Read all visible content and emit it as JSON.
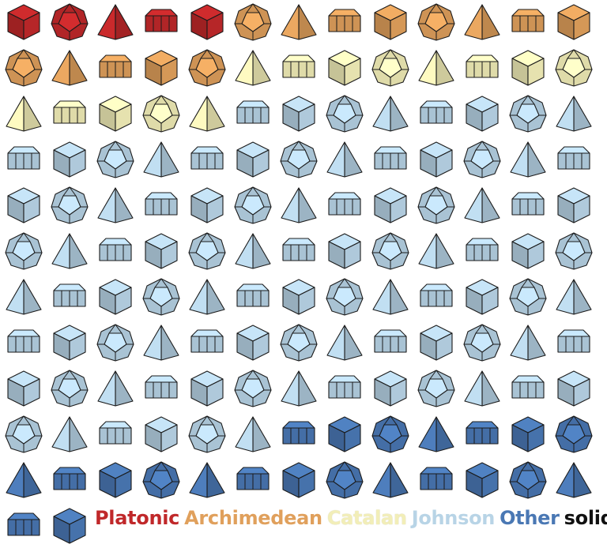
{
  "colors": {
    "platonic": "#c0282a",
    "archimedean": "#e0a05c",
    "catalan": "#f2eeb8",
    "johnson": "#b8d4e6",
    "other": "#4a78b4",
    "solids": "#111111"
  },
  "legend": {
    "platonic": "Platonic",
    "archimedean": "Archimedean",
    "catalan": "Catalan",
    "johnson": "Johnson",
    "other": "Other",
    "solids": "solids"
  },
  "rows": [
    [
      "platonic",
      "platonic",
      "platonic",
      "platonic",
      "platonic",
      "archimedean",
      "archimedean",
      "archimedean",
      "archimedean",
      "archimedean",
      "archimedean",
      "archimedean",
      "archimedean"
    ],
    [
      "archimedean",
      "archimedean",
      "archimedean",
      "archimedean",
      "archimedean",
      "catalan",
      "catalan",
      "catalan",
      "catalan",
      "catalan",
      "catalan",
      "catalan",
      "catalan"
    ],
    [
      "catalan",
      "catalan",
      "catalan",
      "catalan",
      "catalan",
      "johnson",
      "johnson",
      "johnson",
      "johnson",
      "johnson",
      "johnson",
      "johnson",
      "johnson"
    ],
    [
      "johnson",
      "johnson",
      "johnson",
      "johnson",
      "johnson",
      "johnson",
      "johnson",
      "johnson",
      "johnson",
      "johnson",
      "johnson",
      "johnson",
      "johnson"
    ],
    [
      "johnson",
      "johnson",
      "johnson",
      "johnson",
      "johnson",
      "johnson",
      "johnson",
      "johnson",
      "johnson",
      "johnson",
      "johnson",
      "johnson",
      "johnson"
    ],
    [
      "johnson",
      "johnson",
      "johnson",
      "johnson",
      "johnson",
      "johnson",
      "johnson",
      "johnson",
      "johnson",
      "johnson",
      "johnson",
      "johnson",
      "johnson"
    ],
    [
      "johnson",
      "johnson",
      "johnson",
      "johnson",
      "johnson",
      "johnson",
      "johnson",
      "johnson",
      "johnson",
      "johnson",
      "johnson",
      "johnson",
      "johnson"
    ],
    [
      "johnson",
      "johnson",
      "johnson",
      "johnson",
      "johnson",
      "johnson",
      "johnson",
      "johnson",
      "johnson",
      "johnson",
      "johnson",
      "johnson",
      "johnson"
    ],
    [
      "johnson",
      "johnson",
      "johnson",
      "johnson",
      "johnson",
      "johnson",
      "johnson",
      "johnson",
      "johnson",
      "johnson",
      "johnson",
      "johnson",
      "johnson"
    ],
    [
      "johnson",
      "johnson",
      "johnson",
      "johnson",
      "johnson",
      "johnson",
      "other",
      "other",
      "other",
      "other",
      "other",
      "other",
      "other"
    ],
    [
      "other",
      "other",
      "other",
      "other",
      "other",
      "other",
      "other",
      "other",
      "other",
      "other",
      "other",
      "other",
      "other"
    ],
    [
      "other",
      "other"
    ]
  ]
}
